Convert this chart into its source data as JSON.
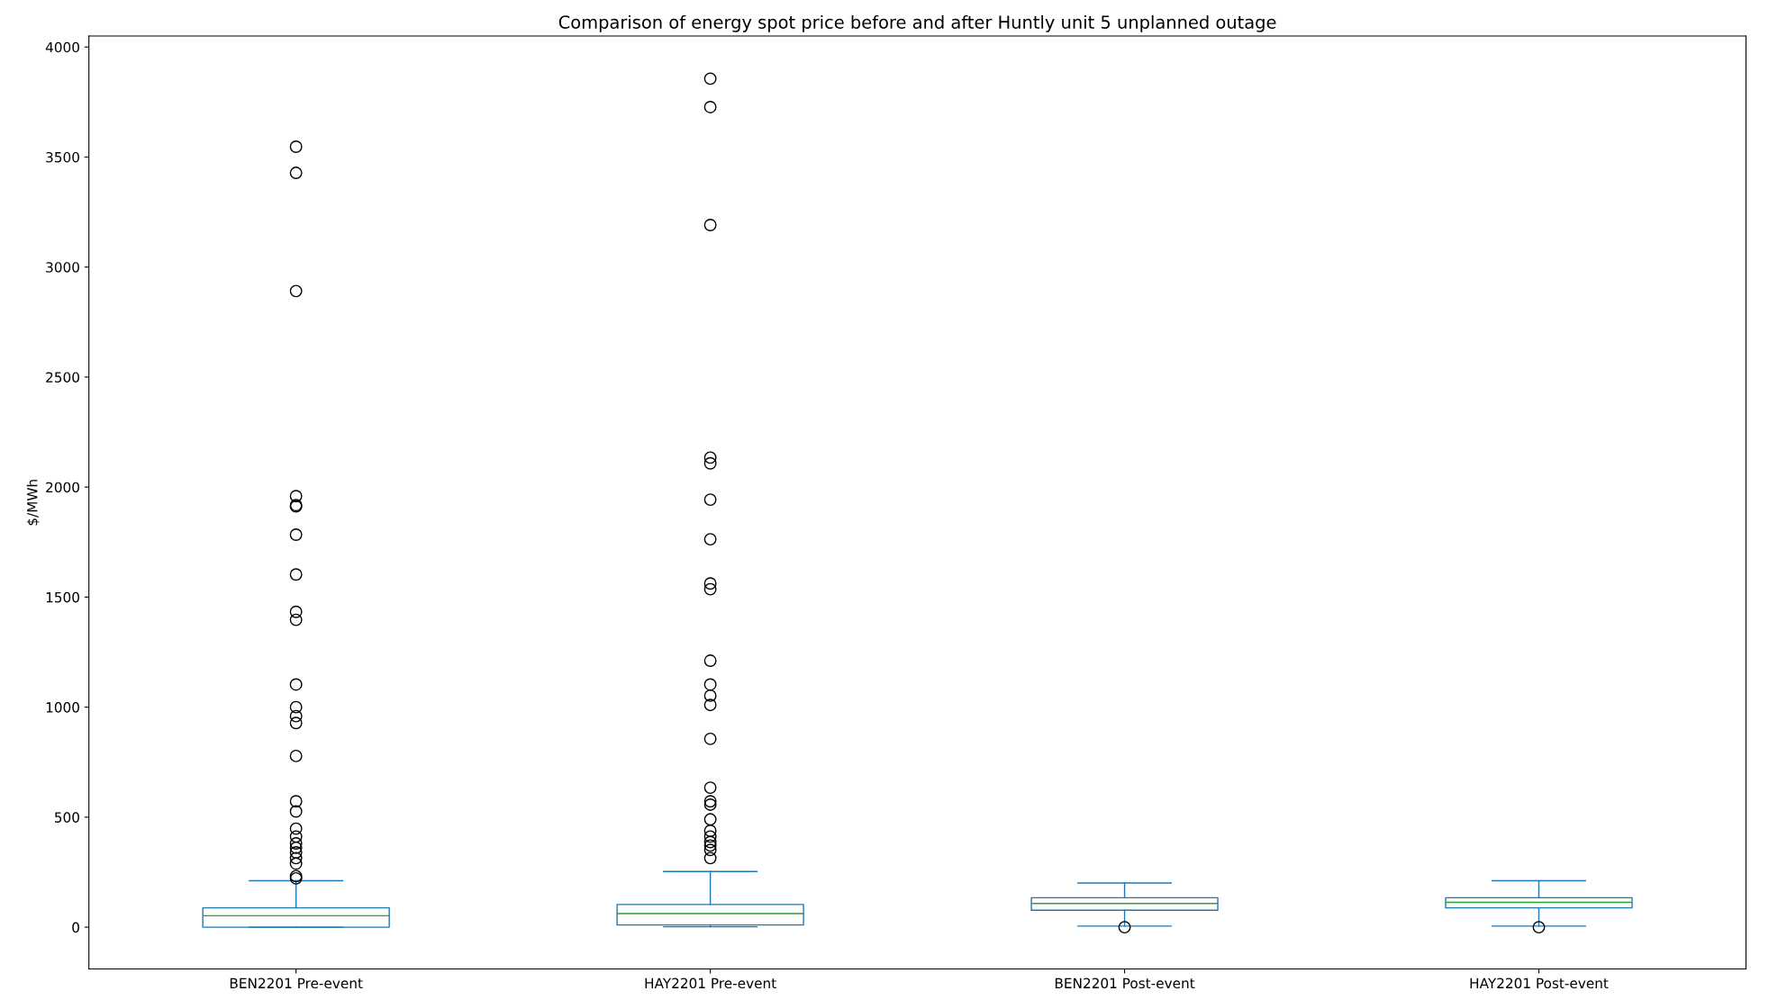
{
  "chart_data": {
    "type": "box",
    "title": "Comparison of energy spot price before and after Huntly unit 5 unplanned outage",
    "ylabel": "$/MWh",
    "categories": [
      "BEN2201 Pre-event",
      "HAY2201 Pre-event",
      "BEN2201 Post-event",
      "HAY2201 Post-event"
    ],
    "boxes": [
      {
        "low": 0,
        "q1": 0,
        "median": 52,
        "q3": 88,
        "high": 211,
        "outliers": [
          3547,
          3428,
          2891,
          1959,
          1918,
          1912,
          1784,
          1603,
          1433,
          1397,
          1103,
          1000,
          959,
          928,
          778,
          572,
          526,
          448,
          412,
          381,
          361,
          340,
          314,
          289,
          232,
          222
        ]
      },
      {
        "low": 2,
        "q1": 10,
        "median": 62,
        "q3": 103,
        "high": 253,
        "outliers": [
          3856,
          3727,
          3191,
          2134,
          2108,
          1943,
          1763,
          1562,
          1536,
          1211,
          1103,
          1052,
          1010,
          856,
          634,
          572,
          557,
          490,
          438,
          412,
          387,
          371,
          351,
          314
        ]
      },
      {
        "low": 5,
        "q1": 77,
        "median": 108,
        "q3": 134,
        "high": 201,
        "outliers": [
          0
        ]
      },
      {
        "low": 5,
        "q1": 88,
        "median": 113,
        "q3": 134,
        "high": 211,
        "outliers": [
          0
        ]
      }
    ],
    "color": "#1f77b4",
    "ylim": [
      -190,
      4050
    ],
    "yticks": [
      0,
      500,
      1000,
      1500,
      2000,
      2500,
      3000,
      3500,
      4000
    ],
    "grid": false
  }
}
